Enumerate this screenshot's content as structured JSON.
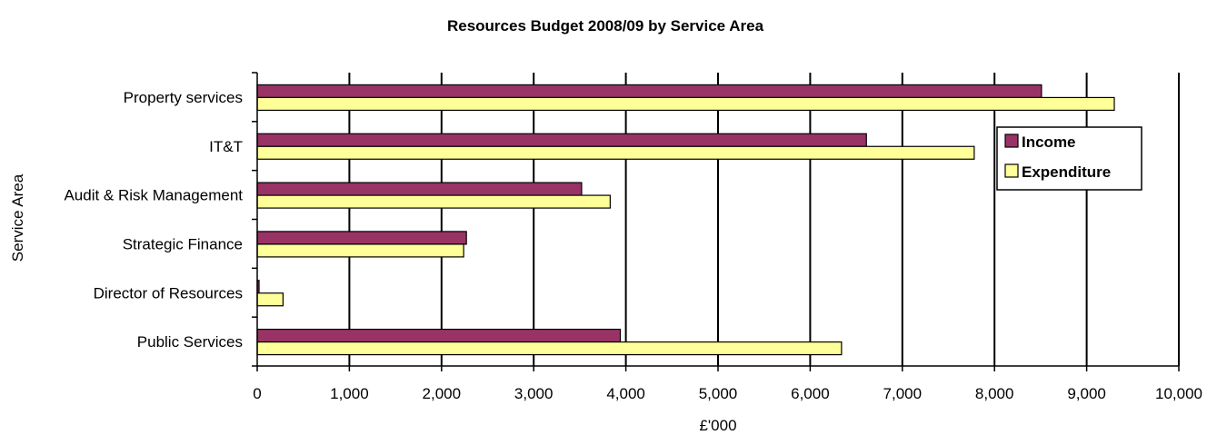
{
  "chart_data": {
    "type": "bar",
    "orientation": "horizontal",
    "title": "Resources Budget 2008/09 by Service Area",
    "xlabel": "£'000",
    "ylabel": "Service Area",
    "categories": [
      "Public Services",
      "Director of Resources",
      "Strategic Finance",
      "Audit & Risk Management",
      "IT&T",
      "Property services"
    ],
    "series": [
      {
        "name": "Income",
        "color": "#993366",
        "values": [
          3940,
          20,
          2270,
          3520,
          6610,
          8510
        ]
      },
      {
        "name": "Expenditure",
        "color": "#FFFF99",
        "values": [
          6340,
          280,
          2240,
          3830,
          7780,
          9300
        ]
      }
    ],
    "xlim": [
      0,
      10000
    ],
    "x_ticks": [
      "0",
      "1,000",
      "2,000",
      "3,000",
      "4,000",
      "5,000",
      "6,000",
      "7,000",
      "8,000",
      "9,000",
      "10,000"
    ],
    "grid": "vertical",
    "legend_position": "right"
  }
}
